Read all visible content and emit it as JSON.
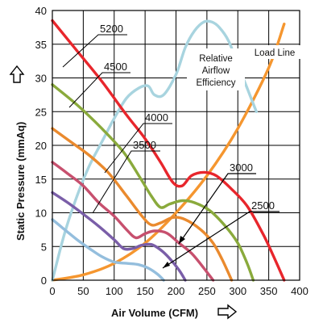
{
  "chart_data": {
    "type": "line",
    "title": "",
    "xlabel": "Air Volume (CFM)",
    "ylabel": "Static Pressure (mmAq)",
    "xlim": [
      0,
      400
    ],
    "ylim": [
      0,
      40
    ],
    "xticks": [
      0,
      50,
      100,
      150,
      200,
      250,
      300,
      350,
      400
    ],
    "yticks": [
      0,
      5,
      10,
      15,
      20,
      25,
      30,
      35,
      40
    ],
    "grid": true,
    "series": [
      {
        "name": "5200",
        "color": "#e8262c",
        "x": [
          0,
          40,
          80,
          120,
          150,
          175,
          195,
          210,
          225,
          245,
          265,
          290,
          315,
          340,
          358,
          375
        ],
        "y": [
          38.5,
          34,
          29.5,
          24.5,
          21,
          17.5,
          14.5,
          14,
          15.5,
          16,
          15.5,
          13.5,
          11,
          7,
          3.5,
          0
        ]
      },
      {
        "name": "4500",
        "color": "#8aaa3c",
        "x": [
          0,
          40,
          80,
          115,
          140,
          160,
          175,
          190,
          210,
          230,
          255,
          280,
          300,
          315,
          325
        ],
        "y": [
          29,
          26,
          22.5,
          19,
          15.5,
          12.5,
          10.8,
          11.3,
          11.8,
          11.5,
          10.3,
          8,
          5.5,
          2.5,
          0
        ]
      },
      {
        "name": "4000",
        "color": "#ea8a2e",
        "x": [
          0,
          30,
          60,
          90,
          120,
          145,
          160,
          175,
          195,
          215,
          240,
          260,
          275,
          290
        ],
        "y": [
          22.5,
          20.5,
          18.5,
          16,
          12.5,
          9.5,
          8.2,
          8.5,
          9.3,
          9,
          7.5,
          5.5,
          3,
          0
        ]
      },
      {
        "name": "3500",
        "color": "#c7506e",
        "x": [
          0,
          25,
          50,
          75,
          100,
          120,
          135,
          150,
          165,
          185,
          205,
          225,
          245,
          260
        ],
        "y": [
          17.5,
          15.8,
          14,
          11.5,
          9.5,
          7.5,
          6.3,
          6.9,
          7.3,
          7,
          5.5,
          4,
          1.8,
          0
        ]
      },
      {
        "name": "3000",
        "color": "#7a5ea8",
        "x": [
          0,
          25,
          50,
          75,
          100,
          115,
          130,
          145,
          160,
          175,
          190,
          205,
          215
        ],
        "y": [
          13,
          11.5,
          9.8,
          8,
          6,
          4.7,
          4.7,
          5.2,
          5.3,
          4.5,
          3.2,
          1.5,
          0
        ]
      },
      {
        "name": "2500",
        "color": "#94bedd",
        "x": [
          0,
          20,
          40,
          60,
          80,
          100,
          120,
          140,
          155,
          170,
          180
        ],
        "y": [
          9,
          7.5,
          6,
          4.7,
          3.5,
          2.7,
          2.5,
          2.3,
          1.8,
          0.9,
          0
        ]
      },
      {
        "name": "Relative Airflow Efficiency",
        "color": "#a8d4df",
        "x": [
          0,
          20,
          40,
          60,
          80,
          100,
          120,
          140,
          155,
          165,
          180,
          200,
          215,
          230,
          245,
          258,
          270,
          285,
          300,
          315,
          330
        ],
        "y": [
          0,
          7,
          12.5,
          17,
          20.5,
          24,
          27,
          28.5,
          28.8,
          27.5,
          27.5,
          30.5,
          34.5,
          37,
          38.3,
          38.3,
          37.5,
          35.5,
          32,
          28.5,
          25
        ]
      },
      {
        "name": "Load Line",
        "color": "#f5962f",
        "x": [
          0,
          50,
          100,
          150,
          200,
          250,
          300,
          350,
          375
        ],
        "y": [
          0,
          0.8,
          2.5,
          5.5,
          10,
          15.5,
          22.5,
          31.5,
          38
        ]
      }
    ],
    "annotations": {
      "speed_labels": [
        "5200",
        "4500",
        "4000",
        "3500",
        "3000",
        "2500"
      ],
      "efficiency_label": [
        "Relative",
        "Airflow",
        "Efficiency"
      ],
      "load_label": "Load Line"
    }
  }
}
